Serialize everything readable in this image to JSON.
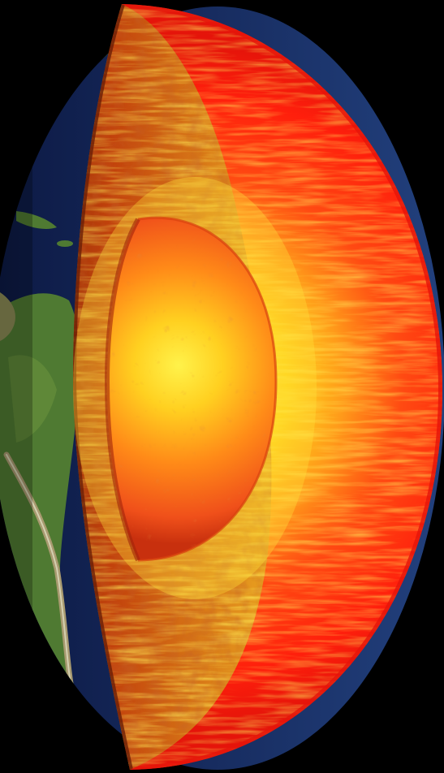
{
  "image": {
    "kind": "illustration",
    "subject": "earth-interior-cutaway",
    "colors": {
      "background": "#000000",
      "ocean": "#1b2f6b",
      "land": "#4f7a32",
      "land_dry": "#8a8a55",
      "crust_cut": "#c2410c",
      "mantle_outer": "#ff1a0a",
      "mantle_glow": "#ffd21a",
      "outer_core": "#e8501a",
      "inner_core_center": "#fff24a"
    }
  }
}
